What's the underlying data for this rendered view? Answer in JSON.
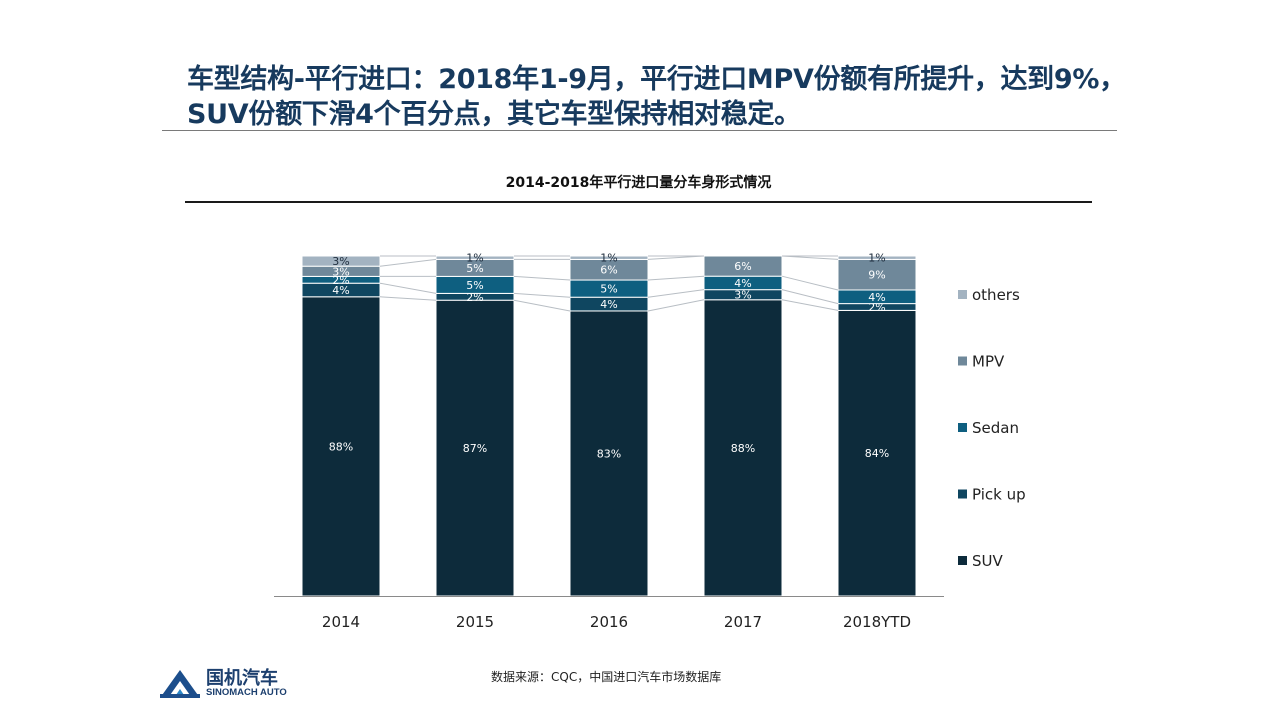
{
  "header": {
    "title_line1": "车型结构-平行进口：2018年1-9月，平行进口MPV份额有所提升，达到9%，",
    "title_line2": "SUV份额下滑4个百分点，其它车型保持相对稳定。"
  },
  "source": "数据来源：CQC，中国进口汽车市场数据库",
  "logo": {
    "name": "国机汽车",
    "sub": "SINOMACH AUTO"
  },
  "chart_data": {
    "type": "bar",
    "stacked": true,
    "percent_stacked": true,
    "title": "2014-2018年平行进口量分车身形式情况",
    "categories": [
      "2014",
      "2015",
      "2016",
      "2017",
      "2018YTD"
    ],
    "series": [
      {
        "name": "SUV",
        "values": [
          88,
          87,
          83,
          88,
          84
        ],
        "labels": [
          "88%",
          "87%",
          "83%",
          "88%",
          "84%"
        ],
        "color": "#0d2b3b"
      },
      {
        "name": "Pick up",
        "values": [
          4,
          2,
          4,
          3,
          2
        ],
        "labels": [
          "4%",
          "2%",
          "4%",
          "3%",
          "2%"
        ],
        "color": "#0f4660"
      },
      {
        "name": "Sedan",
        "values": [
          2,
          5,
          5,
          4,
          4
        ],
        "labels": [
          "2%",
          "5%",
          "5%",
          "4%",
          "4%"
        ],
        "color": "#0e5f80"
      },
      {
        "name": "MPV",
        "values": [
          3,
          5,
          6,
          6,
          9
        ],
        "labels": [
          "3%",
          "5%",
          "6%",
          "6%",
          "9%"
        ],
        "color": "#6f889a"
      },
      {
        "name": "others",
        "values": [
          3,
          1,
          1,
          0,
          1
        ],
        "labels": [
          "3%",
          "1%",
          "1%",
          "",
          "1%"
        ],
        "color": "#a3b3c1"
      }
    ],
    "legend_order": [
      "others",
      "MPV",
      "Sedan",
      "Pick up",
      "SUV"
    ],
    "legend_position": "right",
    "ylim": [
      0,
      100
    ],
    "grid": false,
    "series_lines": true
  }
}
